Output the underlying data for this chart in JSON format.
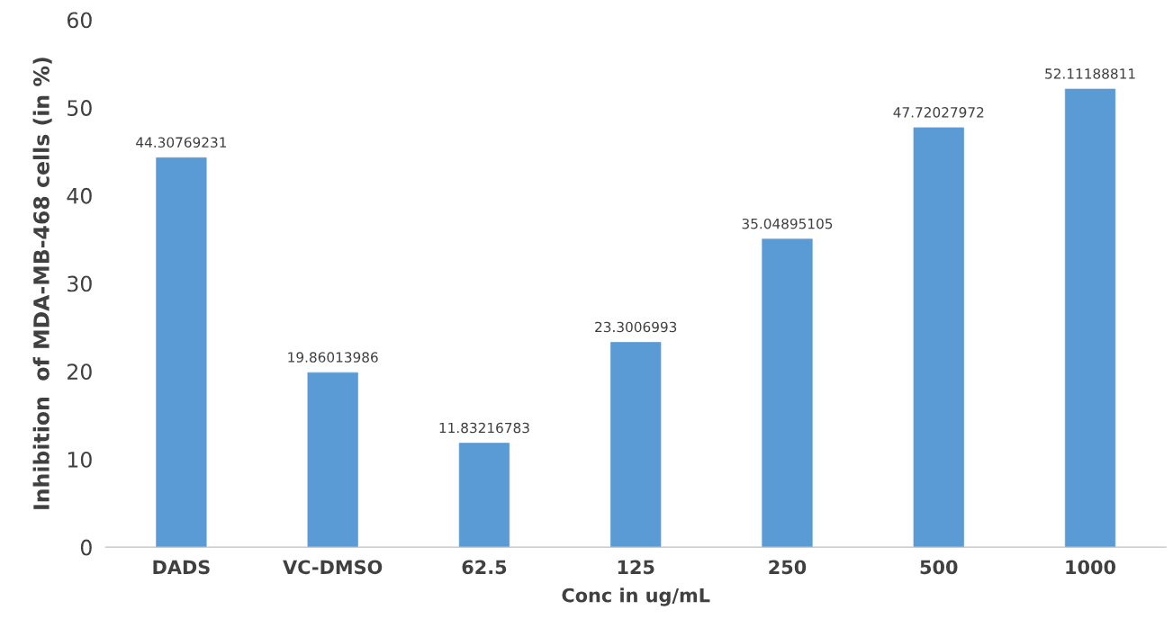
{
  "chart_data": {
    "type": "bar",
    "xlabel": "Conc in ug/mL",
    "ylabel": "Inhibition  of MDA-MB-468 cells (in %)",
    "categories": [
      "DADS",
      "VC-DMSO",
      "62.5",
      "125",
      "250",
      "500",
      "1000"
    ],
    "values": [
      44.30769231,
      19.86013986,
      11.83216783,
      23.3006993,
      35.04895105,
      47.72027972,
      52.11188811
    ],
    "color": "#5b9bd5",
    "ylim": [
      0,
      60
    ],
    "yticks": [
      0,
      10,
      20,
      30,
      40,
      50,
      60
    ],
    "data_labels": true,
    "grid": false,
    "legend": false
  }
}
